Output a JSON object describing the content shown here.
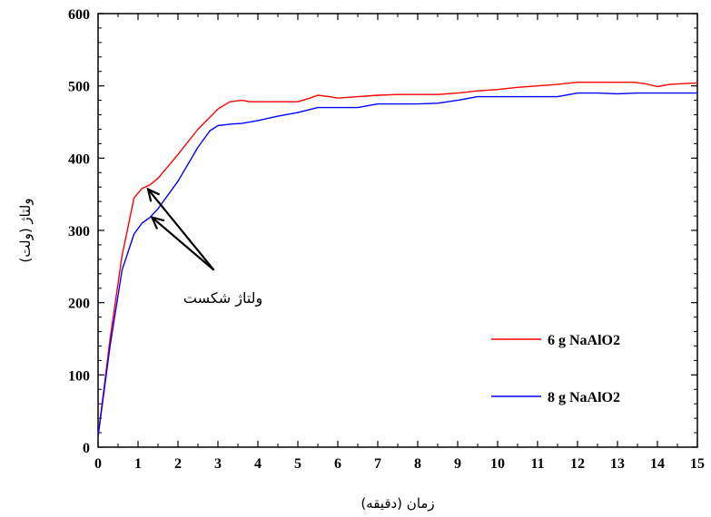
{
  "chart_data": {
    "type": "line",
    "title": "",
    "xlabel": "زمان (دقیقه)",
    "ylabel": "ولتاژ (ولت)",
    "xlim": [
      0,
      15
    ],
    "ylim": [
      0,
      600
    ],
    "xticks": [
      0,
      1,
      2,
      3,
      4,
      5,
      6,
      7,
      8,
      9,
      10,
      11,
      12,
      13,
      14,
      15
    ],
    "yticks": [
      0,
      100,
      200,
      300,
      400,
      500,
      600
    ],
    "grid": false,
    "legend_position": "right",
    "series": [
      {
        "name": "6 g NaAlO2",
        "color": "#ff0000",
        "x": [
          0,
          0.3,
          0.6,
          0.9,
          1.1,
          1.3,
          1.5,
          2.0,
          2.5,
          3.0,
          3.3,
          3.6,
          3.8,
          4.0,
          4.5,
          5.0,
          5.3,
          5.5,
          5.8,
          6.0,
          6.5,
          7.0,
          7.5,
          8.0,
          8.5,
          9.0,
          9.5,
          10.0,
          10.5,
          11.0,
          11.5,
          12.0,
          12.5,
          13.0,
          13.4,
          13.7,
          14.0,
          14.3,
          14.6,
          15.0
        ],
        "y": [
          15,
          150,
          265,
          345,
          358,
          363,
          372,
          405,
          440,
          468,
          478,
          480,
          478,
          478,
          478,
          478,
          483,
          487,
          485,
          483,
          485,
          487,
          488,
          488,
          488,
          490,
          493,
          495,
          498,
          500,
          502,
          505,
          505,
          505,
          505,
          503,
          499,
          502,
          503,
          504
        ]
      },
      {
        "name": "8 g NaAlO2",
        "color": "#0000ff",
        "x": [
          0,
          0.3,
          0.6,
          0.9,
          1.1,
          1.3,
          1.5,
          2.0,
          2.5,
          2.8,
          3.0,
          3.3,
          3.6,
          4.0,
          4.5,
          5.0,
          5.5,
          6.0,
          6.5,
          7.0,
          7.5,
          8.0,
          8.5,
          9.0,
          9.5,
          10.0,
          10.5,
          11.0,
          11.5,
          11.8,
          12.0,
          12.5,
          13.0,
          13.5,
          14.0,
          14.5,
          15.0
        ],
        "y": [
          15,
          140,
          245,
          295,
          310,
          318,
          330,
          368,
          415,
          438,
          445,
          447,
          448,
          452,
          458,
          463,
          470,
          470,
          470,
          475,
          475,
          475,
          476,
          480,
          485,
          485,
          485,
          485,
          485,
          488,
          490,
          490,
          489,
          490,
          490,
          490,
          490
        ]
      }
    ],
    "annotations": [
      {
        "text": "ولتاژ شکست",
        "arrow_tips": [
          {
            "x": 1.25,
            "y": 357
          },
          {
            "x": 1.35,
            "y": 318
          }
        ],
        "arrow_base": {
          "x": 2.9,
          "y": 245
        }
      }
    ]
  }
}
